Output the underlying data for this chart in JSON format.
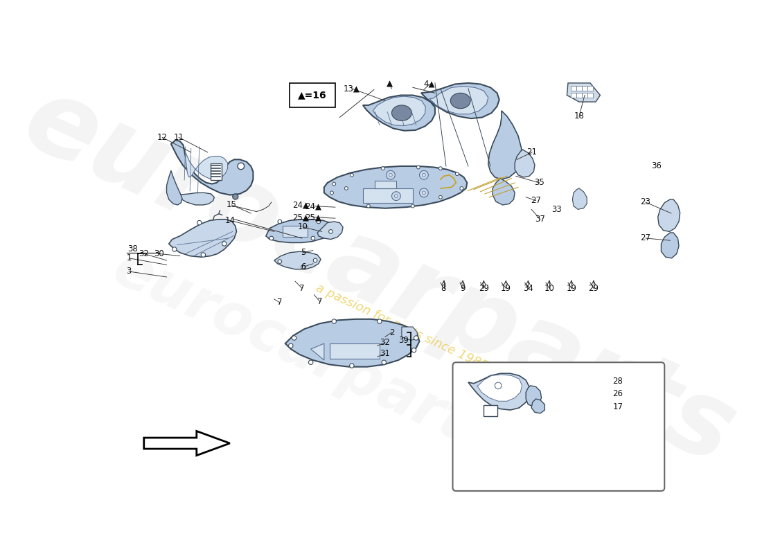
{
  "bg_color": "#ffffff",
  "fill_blue": "#b8cce4",
  "fill_blue2": "#c8d8ea",
  "fill_blue_light": "#d4e2f0",
  "edge_dark": "#3a4a5a",
  "edge_mid": "#5a7090",
  "edge_light": "#8099b0",
  "legend_text": "▲=16",
  "watermark1": "eurocarparts",
  "watermark2": "a passion for parts since 1985",
  "arrow_dir": "left"
}
